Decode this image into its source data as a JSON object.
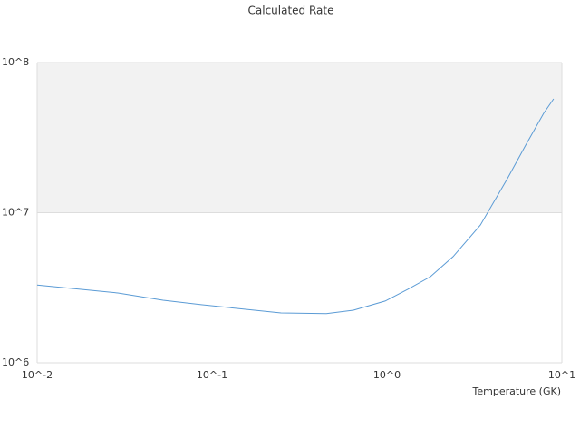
{
  "chart_data": {
    "type": "line",
    "title": "Calculated Rate",
    "xlabel": "Temperature (GK)",
    "x": [
      0.01,
      0.0289,
      0.0525,
      0.0867,
      0.248,
      0.45,
      0.643,
      0.977,
      1.316,
      1.774,
      2.39,
      3.42,
      4.89,
      6.21,
      7.87,
      8.97
    ],
    "series": [
      {
        "color": "#5b9bd5",
        "values": [
          3300000,
          2920000,
          2610000,
          2440000,
          2150000,
          2130000,
          2240000,
          2580000,
          3090000,
          3750000,
          5100000,
          8280000,
          16900000,
          28200000,
          45900000,
          57300000
        ]
      }
    ],
    "xlim": [
      0.01,
      10
    ],
    "ylim": [
      1000000,
      100000000
    ],
    "xticks": [
      {
        "value": 0.01,
        "label": "10^-2"
      },
      {
        "value": 0.1,
        "label": "10^-1"
      },
      {
        "value": 1,
        "label": "10^0"
      },
      {
        "value": 10,
        "label": "10^1"
      }
    ],
    "yticks": [
      {
        "value": 1000000,
        "label": "10^6"
      },
      {
        "value": 10000000,
        "label": "10^7"
      },
      {
        "value": 100000000,
        "label": "10^8"
      }
    ],
    "log_x": true,
    "log_y": true,
    "band_color": "#f2f2f2"
  }
}
